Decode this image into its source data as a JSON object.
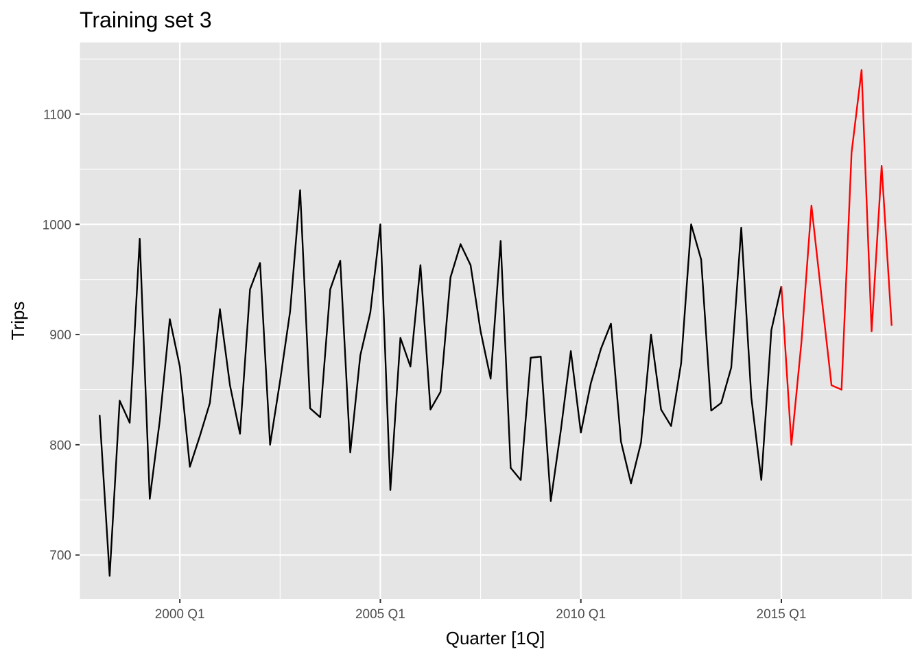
{
  "chart_data": {
    "type": "line",
    "title": "Training set 3",
    "xlabel": "Quarter [1Q]",
    "ylabel": "Trips",
    "x_tick_labels": [
      "2000 Q1",
      "2005 Q1",
      "2010 Q1",
      "2015 Q1"
    ],
    "y_ticks": [
      700,
      800,
      900,
      1000,
      1100
    ],
    "ylim": [
      660,
      1165
    ],
    "xlim": [
      "1997 Q3",
      "2018 Q2"
    ],
    "grid": true,
    "legend": "none",
    "background": "#e5e5e5",
    "series": [
      {
        "color": "#000000",
        "x": [
          "1998 Q1",
          "1998 Q2",
          "1998 Q3",
          "1998 Q4",
          "1999 Q1",
          "1999 Q2",
          "1999 Q3",
          "1999 Q4",
          "2000 Q1",
          "2000 Q2",
          "2000 Q3",
          "2000 Q4",
          "2001 Q1",
          "2001 Q2",
          "2001 Q3",
          "2001 Q4",
          "2002 Q1",
          "2002 Q2",
          "2002 Q3",
          "2002 Q4",
          "2003 Q1",
          "2003 Q2",
          "2003 Q3",
          "2003 Q4",
          "2004 Q1",
          "2004 Q2",
          "2004 Q3",
          "2004 Q4",
          "2005 Q1",
          "2005 Q2",
          "2005 Q3",
          "2005 Q4",
          "2006 Q1",
          "2006 Q2",
          "2006 Q3",
          "2006 Q4",
          "2007 Q1",
          "2007 Q2",
          "2007 Q3",
          "2007 Q4",
          "2008 Q1",
          "2008 Q2",
          "2008 Q3",
          "2008 Q4",
          "2009 Q1",
          "2009 Q2",
          "2009 Q3",
          "2009 Q4",
          "2010 Q1",
          "2010 Q2",
          "2010 Q3",
          "2010 Q4",
          "2011 Q1",
          "2011 Q2",
          "2011 Q3",
          "2011 Q4",
          "2012 Q1",
          "2012 Q2",
          "2012 Q3",
          "2012 Q4",
          "2013 Q1",
          "2013 Q2",
          "2013 Q3",
          "2013 Q4",
          "2014 Q1",
          "2014 Q2",
          "2014 Q3",
          "2014 Q4",
          "2015 Q1"
        ],
        "values": [
          827,
          681,
          840,
          820,
          987,
          751,
          822,
          914,
          871,
          780,
          808,
          838,
          923,
          854,
          810,
          941,
          965,
          800,
          858,
          921,
          1031,
          833,
          825,
          941,
          967,
          793,
          881,
          920,
          1000,
          759,
          897,
          871,
          963,
          832,
          848,
          952,
          982,
          963,
          903,
          860,
          985,
          779,
          768,
          879,
          880,
          749,
          813,
          885,
          811,
          856,
          887,
          910,
          803,
          765,
          802,
          900,
          832,
          817,
          874,
          1000,
          968,
          831,
          838,
          870,
          997,
          843,
          768,
          904,
          944
        ]
      },
      {
        "color": "#ff0000",
        "x": [
          "2015 Q1",
          "2015 Q2",
          "2015 Q3",
          "2015 Q4",
          "2016 Q1",
          "2016 Q2",
          "2016 Q3",
          "2016 Q4",
          "2017 Q1",
          "2017 Q2",
          "2017 Q3",
          "2017 Q4"
        ],
        "values": [
          944,
          800,
          893,
          1017,
          935,
          854,
          850,
          1065,
          1140,
          903,
          1053,
          908
        ]
      }
    ]
  }
}
